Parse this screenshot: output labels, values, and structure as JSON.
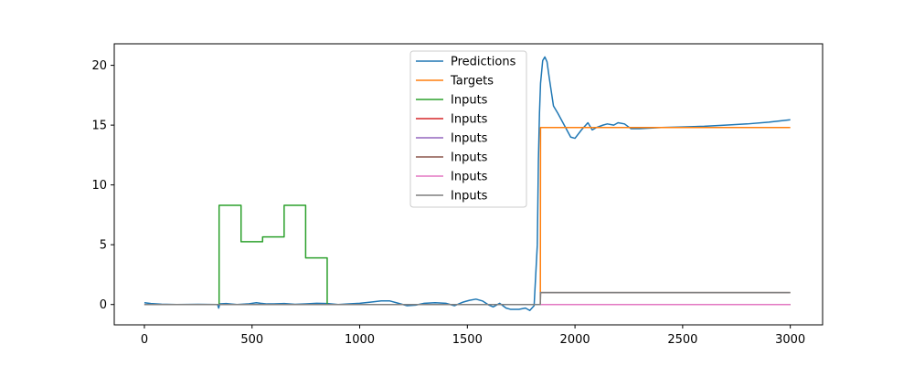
{
  "chart_data": {
    "type": "line",
    "title": "",
    "xlabel": "",
    "ylabel": "",
    "xlim": [
      -140,
      3150
    ],
    "ylim": [
      -1.7,
      21.8
    ],
    "xticks": [
      0,
      500,
      1000,
      1500,
      2000,
      2500,
      3000
    ],
    "yticks": [
      0,
      5,
      10,
      15,
      20
    ],
    "legend_position": "upper center",
    "grid": false,
    "series": [
      {
        "name": "Predictions",
        "color": "#1f77b4",
        "x": [
          0,
          30,
          80,
          150,
          250,
          340,
          345,
          350,
          380,
          430,
          480,
          520,
          540,
          570,
          600,
          650,
          700,
          750,
          800,
          850,
          900,
          950,
          1000,
          1050,
          1100,
          1140,
          1180,
          1220,
          1260,
          1300,
          1350,
          1400,
          1440,
          1480,
          1510,
          1540,
          1570,
          1600,
          1620,
          1650,
          1680,
          1700,
          1740,
          1770,
          1790,
          1810,
          1825,
          1830,
          1835,
          1840,
          1850,
          1860,
          1870,
          1880,
          1900,
          1920,
          1950,
          1980,
          2000,
          2030,
          2060,
          2080,
          2100,
          2130,
          2150,
          2180,
          2200,
          2230,
          2260,
          2300,
          2350,
          2400,
          2500,
          2600,
          2700,
          2800,
          2900,
          3000
        ],
        "y": [
          0.15,
          0.08,
          0.03,
          0.0,
          0.02,
          0.0,
          -0.3,
          0.05,
          0.08,
          0.0,
          0.05,
          0.15,
          0.1,
          0.05,
          0.05,
          0.08,
          0.02,
          0.05,
          0.1,
          0.08,
          0.0,
          0.05,
          0.1,
          0.2,
          0.3,
          0.3,
          0.1,
          -0.1,
          -0.05,
          0.1,
          0.15,
          0.1,
          -0.1,
          0.2,
          0.35,
          0.45,
          0.3,
          -0.05,
          -0.2,
          0.1,
          -0.3,
          -0.4,
          -0.4,
          -0.3,
          -0.5,
          -0.1,
          5.0,
          12.0,
          16.0,
          18.5,
          20.4,
          20.7,
          20.3,
          19.0,
          16.6,
          16.0,
          15.0,
          14.0,
          13.9,
          14.6,
          15.2,
          14.6,
          14.8,
          15.0,
          15.1,
          15.0,
          15.2,
          15.1,
          14.7,
          14.7,
          14.75,
          14.8,
          14.85,
          14.9,
          15.0,
          15.1,
          15.25,
          15.45
        ]
      },
      {
        "name": "Targets",
        "color": "#ff7f0e",
        "x": [
          0,
          1839,
          1840,
          3000
        ],
        "y": [
          0.0,
          0.0,
          14.8,
          14.8
        ]
      },
      {
        "name": "Inputs",
        "color": "#2ca02c",
        "x": [
          0,
          347,
          347,
          449,
          449,
          549,
          549,
          649,
          649,
          749,
          749,
          849,
          849,
          3000
        ],
        "y": [
          0,
          0,
          8.3,
          8.3,
          5.25,
          5.25,
          5.65,
          5.65,
          8.3,
          8.3,
          3.9,
          3.9,
          0,
          0
        ]
      },
      {
        "name": "Inputs",
        "color": "#d62728",
        "x": [
          0,
          3000
        ],
        "y": [
          0,
          0
        ]
      },
      {
        "name": "Inputs",
        "color": "#9467bd",
        "x": [
          0,
          3000
        ],
        "y": [
          0,
          0
        ]
      },
      {
        "name": "Inputs",
        "color": "#8c564b",
        "x": [
          0,
          1839,
          1840,
          3000
        ],
        "y": [
          0,
          0,
          1.0,
          1.0
        ]
      },
      {
        "name": "Inputs",
        "color": "#e377c2",
        "x": [
          0,
          3000
        ],
        "y": [
          0,
          0
        ]
      },
      {
        "name": "Inputs",
        "color": "#7f7f7f",
        "x": [
          0,
          1839,
          1840,
          3000
        ],
        "y": [
          0,
          0,
          1.0,
          1.0
        ]
      }
    ]
  }
}
